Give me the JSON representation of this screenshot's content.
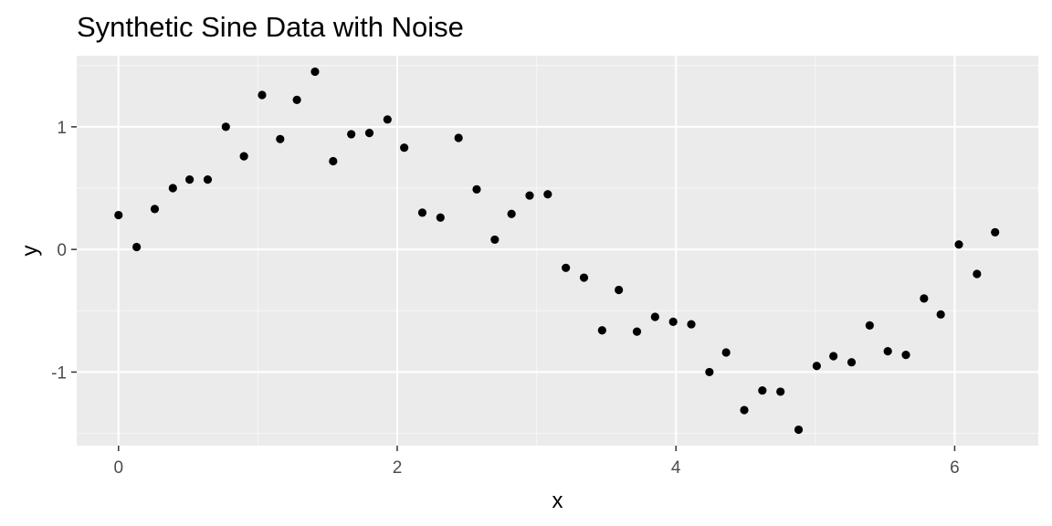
{
  "chart_data": {
    "type": "scatter",
    "title": "Synthetic Sine Data with Noise",
    "xlabel": "x",
    "ylabel": "y",
    "xlim": [
      -0.3,
      6.6
    ],
    "ylim": [
      -1.6,
      1.58
    ],
    "x_ticks": [
      0,
      2,
      4,
      6
    ],
    "x_tick_labels": [
      "0",
      "2",
      "4",
      "6"
    ],
    "y_ticks": [
      -1,
      0,
      1
    ],
    "y_tick_labels": [
      "-1",
      "0",
      "1"
    ],
    "grid": true,
    "legend": "none",
    "colors": {
      "panel_background": "#ebebeb",
      "grid_major": "#ffffff",
      "grid_minor": "#f5f5f5",
      "point": "#000000",
      "tick_label": "#4d4d4d",
      "tick_mark": "#333333"
    },
    "series": [
      {
        "points": [
          {
            "x": 0.0,
            "y": 0.28
          },
          {
            "x": 0.13,
            "y": 0.02
          },
          {
            "x": 0.26,
            "y": 0.33
          },
          {
            "x": 0.39,
            "y": 0.5
          },
          {
            "x": 0.51,
            "y": 0.57
          },
          {
            "x": 0.64,
            "y": 0.57
          },
          {
            "x": 0.77,
            "y": 1.0
          },
          {
            "x": 0.9,
            "y": 0.76
          },
          {
            "x": 1.03,
            "y": 1.26
          },
          {
            "x": 1.16,
            "y": 0.9
          },
          {
            "x": 1.28,
            "y": 1.22
          },
          {
            "x": 1.41,
            "y": 1.45
          },
          {
            "x": 1.54,
            "y": 0.72
          },
          {
            "x": 1.67,
            "y": 0.94
          },
          {
            "x": 1.8,
            "y": 0.95
          },
          {
            "x": 1.93,
            "y": 1.06
          },
          {
            "x": 2.05,
            "y": 0.83
          },
          {
            "x": 2.18,
            "y": 0.3
          },
          {
            "x": 2.31,
            "y": 0.26
          },
          {
            "x": 2.44,
            "y": 0.91
          },
          {
            "x": 2.57,
            "y": 0.49
          },
          {
            "x": 2.7,
            "y": 0.08
          },
          {
            "x": 2.82,
            "y": 0.29
          },
          {
            "x": 2.95,
            "y": 0.44
          },
          {
            "x": 3.08,
            "y": 0.45
          },
          {
            "x": 3.21,
            "y": -0.15
          },
          {
            "x": 3.34,
            "y": -0.23
          },
          {
            "x": 3.47,
            "y": -0.66
          },
          {
            "x": 3.59,
            "y": -0.33
          },
          {
            "x": 3.72,
            "y": -0.67
          },
          {
            "x": 3.85,
            "y": -0.55
          },
          {
            "x": 3.98,
            "y": -0.59
          },
          {
            "x": 4.11,
            "y": -0.61
          },
          {
            "x": 4.24,
            "y": -1.0
          },
          {
            "x": 4.36,
            "y": -0.84
          },
          {
            "x": 4.49,
            "y": -1.31
          },
          {
            "x": 4.62,
            "y": -1.15
          },
          {
            "x": 4.75,
            "y": -1.16
          },
          {
            "x": 4.88,
            "y": -1.47
          },
          {
            "x": 5.01,
            "y": -0.95
          },
          {
            "x": 5.13,
            "y": -0.87
          },
          {
            "x": 5.26,
            "y": -0.92
          },
          {
            "x": 5.39,
            "y": -0.62
          },
          {
            "x": 5.52,
            "y": -0.83
          },
          {
            "x": 5.65,
            "y": -0.86
          },
          {
            "x": 5.78,
            "y": -0.4
          },
          {
            "x": 5.9,
            "y": -0.53
          },
          {
            "x": 6.03,
            "y": 0.04
          },
          {
            "x": 6.16,
            "y": -0.2
          },
          {
            "x": 6.29,
            "y": 0.14
          }
        ]
      }
    ]
  }
}
